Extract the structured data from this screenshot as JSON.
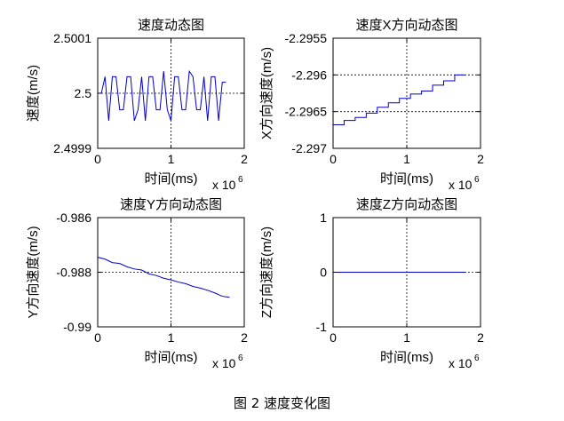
{
  "caption": "图 2  速度变化图",
  "chart_data": [
    {
      "type": "line",
      "title": "速度动态图",
      "xlabel": "时间(ms)",
      "ylabel": "速度(m/s)",
      "x_exponent": "x 10",
      "x_exponent_power": "6",
      "xlim": [
        0,
        2
      ],
      "ylim": [
        2.4999,
        2.5001
      ],
      "x_ticks": [
        0,
        1,
        2
      ],
      "x_tick_labels": [
        "0",
        "1",
        "2"
      ],
      "y_ticks": [
        2.4999,
        2.5,
        2.5001
      ],
      "y_tick_labels": [
        "2.4999",
        "2.5",
        "2.5001"
      ],
      "grid": true,
      "color": "#0000cc",
      "series": [
        {
          "x": [
            0.0,
            0.05,
            0.1,
            0.15,
            0.2,
            0.25,
            0.3,
            0.35,
            0.4,
            0.45,
            0.5,
            0.55,
            0.6,
            0.65,
            0.7,
            0.75,
            0.8,
            0.85,
            0.9,
            0.95,
            1.0,
            1.05,
            1.1,
            1.15,
            1.2,
            1.25,
            1.3,
            1.35,
            1.4,
            1.45,
            1.5,
            1.55,
            1.6,
            1.65,
            1.7,
            1.75
          ],
          "y": [
            2.5,
            2.5,
            2.50003,
            2.49995,
            2.50003,
            2.50003,
            2.49997,
            2.49997,
            2.50003,
            2.50003,
            2.49995,
            2.49997,
            2.50003,
            2.49995,
            2.50003,
            2.50003,
            2.49997,
            2.49997,
            2.50004,
            2.49997,
            2.49995,
            2.50003,
            2.50003,
            2.49997,
            2.49997,
            2.50004,
            2.50003,
            2.49997,
            2.49997,
            2.50003,
            2.49995,
            2.50003,
            2.50003,
            2.49995,
            2.50002,
            2.50002
          ]
        }
      ]
    },
    {
      "type": "line",
      "title": "速度X方向动态图",
      "xlabel": "时间(ms)",
      "ylabel": "X方向速度(m/s)",
      "x_exponent": "x 10",
      "x_exponent_power": "6",
      "xlim": [
        0,
        2
      ],
      "ylim": [
        -2.297,
        -2.2955
      ],
      "x_ticks": [
        0,
        1,
        2
      ],
      "x_tick_labels": [
        "0",
        "1",
        "2"
      ],
      "y_ticks": [
        -2.297,
        -2.2965,
        -2.296,
        -2.2955
      ],
      "y_tick_labels": [
        "-2.297",
        "-2.2965",
        "-2.296",
        "-2.2955"
      ],
      "grid": true,
      "color": "#0000cc",
      "series": [
        {
          "x": [
            0.0,
            0.15,
            0.15,
            0.3,
            0.3,
            0.45,
            0.45,
            0.6,
            0.6,
            0.75,
            0.75,
            0.9,
            0.9,
            1.05,
            1.05,
            1.2,
            1.2,
            1.35,
            1.35,
            1.5,
            1.5,
            1.65,
            1.65,
            1.8
          ],
          "y": [
            -2.29668,
            -2.29668,
            -2.29662,
            -2.29662,
            -2.29658,
            -2.29658,
            -2.29652,
            -2.29652,
            -2.29644,
            -2.29644,
            -2.29638,
            -2.29638,
            -2.29632,
            -2.29632,
            -2.29626,
            -2.29626,
            -2.29622,
            -2.29622,
            -2.29614,
            -2.29614,
            -2.29608,
            -2.29608,
            -2.296,
            -2.296
          ]
        }
      ]
    },
    {
      "type": "line",
      "title": "速度Y方向动态图",
      "xlabel": "时间(ms)",
      "ylabel": "Y方向速度(m/s)",
      "x_exponent": "x 10",
      "x_exponent_power": "6",
      "xlim": [
        0,
        2
      ],
      "ylim": [
        -0.99,
        -0.986
      ],
      "x_ticks": [
        0,
        1,
        2
      ],
      "x_tick_labels": [
        "0",
        "1",
        "2"
      ],
      "y_ticks": [
        -0.99,
        -0.988,
        -0.986
      ],
      "y_tick_labels": [
        "-0.99",
        "-0.988",
        "-0.986"
      ],
      "grid": true,
      "color": "#0000cc",
      "series": [
        {
          "x": [
            0.0,
            0.1,
            0.2,
            0.3,
            0.4,
            0.5,
            0.6,
            0.7,
            0.8,
            0.9,
            1.0,
            1.1,
            1.2,
            1.3,
            1.4,
            1.5,
            1.6,
            1.7,
            1.8
          ],
          "y": [
            -0.98745,
            -0.98752,
            -0.98765,
            -0.98768,
            -0.9878,
            -0.98788,
            -0.98792,
            -0.98806,
            -0.98812,
            -0.98822,
            -0.98828,
            -0.98836,
            -0.98842,
            -0.98852,
            -0.98858,
            -0.98866,
            -0.98876,
            -0.98888,
            -0.98892
          ]
        }
      ]
    },
    {
      "type": "line",
      "title": "速度Z方向动态图",
      "xlabel": "时间(ms)",
      "ylabel": "Z方向速度(m/s)",
      "x_exponent": "x 10",
      "x_exponent_power": "6",
      "xlim": [
        0,
        2
      ],
      "ylim": [
        -1,
        1
      ],
      "x_ticks": [
        0,
        1,
        2
      ],
      "x_tick_labels": [
        "0",
        "1",
        "2"
      ],
      "y_ticks": [
        -1,
        0,
        1
      ],
      "y_tick_labels": [
        "-1",
        "0",
        "1"
      ],
      "grid": true,
      "color": "#0000cc",
      "series": [
        {
          "x": [
            0.0,
            1.8
          ],
          "y": [
            0,
            0
          ]
        }
      ]
    }
  ]
}
